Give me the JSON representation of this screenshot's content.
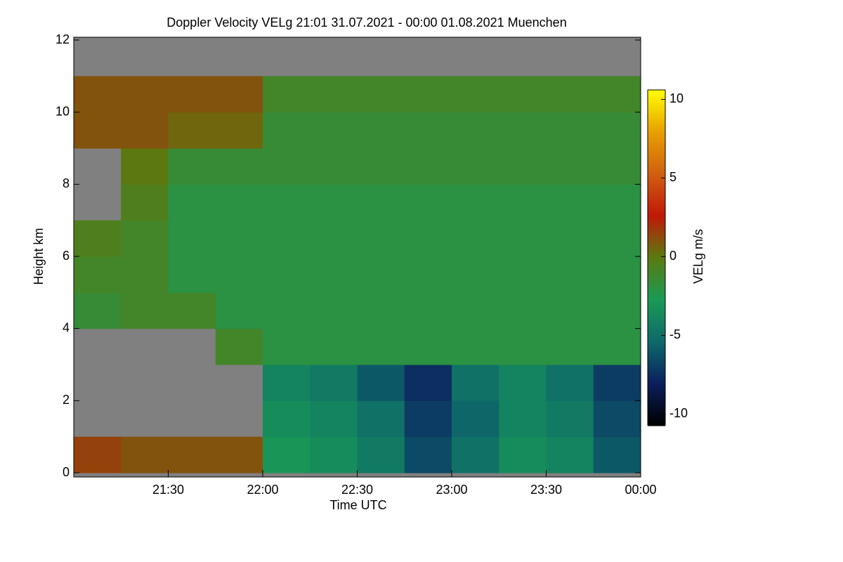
{
  "chart_data": {
    "type": "heatmap",
    "title": "Doppler Velocity VELg   21:01 31.07.2021 - 00:00 01.08.2021 Muenchen",
    "xlabel": "Time UTC",
    "ylabel": "Height km",
    "colorbar_label": "VELg m/s",
    "xlim": [
      21,
      24
    ],
    "xticks": [
      {
        "value": 21.5,
        "label": "21:30"
      },
      {
        "value": 22,
        "label": "22:00"
      },
      {
        "value": 22.5,
        "label": "22:30"
      },
      {
        "value": 23,
        "label": "23:00"
      },
      {
        "value": 23.5,
        "label": "23:30"
      },
      {
        "value": 24,
        "label": "00:00"
      }
    ],
    "ylim": [
      0,
      12
    ],
    "yticks": [
      0,
      2,
      4,
      6,
      8,
      10,
      12
    ],
    "clim": [
      -10.7,
      10.6
    ],
    "cticks": [
      -10,
      -5,
      0,
      5,
      10
    ],
    "colormap": [
      "#000000",
      "#0b1f5e",
      "#0e6a6a",
      "#1a9a55",
      "#5a7a10",
      "#c01808",
      "#d06010",
      "#e8a000",
      "#ffff00"
    ],
    "missing_color": "#808080",
    "xbins": [
      21,
      21.25,
      21.5,
      21.75,
      22,
      22.25,
      22.5,
      22.75,
      23,
      23.25,
      23.5,
      23.75,
      24
    ],
    "ybins": [
      0,
      1,
      2,
      3,
      4,
      5,
      6,
      7,
      8,
      9,
      10,
      11,
      12
    ],
    "z": [
      [
        1.5,
        1,
        1,
        1,
        -3,
        -3.5,
        -4.5,
        -6.5,
        -5,
        -3.5,
        -4,
        -6
      ],
      [
        null,
        null,
        null,
        null,
        -3.5,
        -4,
        -5,
        -7,
        -5.5,
        -4,
        -4.5,
        -6.5
      ],
      [
        null,
        null,
        null,
        null,
        -4,
        -4.5,
        -6,
        -7.5,
        -5,
        -4,
        -5,
        -7
      ],
      [
        null,
        null,
        null,
        -1,
        -2,
        -2,
        -2,
        -2,
        -2,
        -2,
        -2,
        -2
      ],
      [
        -1.5,
        -1,
        -1,
        -2,
        -2,
        -2,
        -2,
        -2,
        -2,
        -2,
        -2,
        -2
      ],
      [
        -1,
        -1,
        -2,
        -2,
        -2,
        -2,
        -2,
        -2,
        -2,
        -2,
        -2,
        -2
      ],
      [
        -0.5,
        -1,
        -2,
        -2,
        -2,
        -2,
        -2,
        -2,
        -2,
        -2,
        -2,
        -2
      ],
      [
        null,
        -0.5,
        -2,
        -2,
        -2,
        -2,
        -2,
        -2,
        -2,
        -2,
        -2,
        -2
      ],
      [
        null,
        0,
        -1.5,
        -1.5,
        -1.5,
        -1.5,
        -1.5,
        -1.5,
        -1.5,
        -1.5,
        -1.5,
        -1.5
      ],
      [
        1,
        1,
        0.5,
        0.5,
        -1.5,
        -1.5,
        -1.5,
        -1.5,
        -1.5,
        -1.5,
        -1.5,
        -1.5
      ],
      [
        1,
        1,
        1,
        1,
        -1,
        -1,
        -1,
        -1,
        -1,
        -1,
        -1,
        -1
      ],
      [
        null,
        null,
        null,
        null,
        null,
        null,
        null,
        null,
        null,
        null,
        null,
        null
      ]
    ]
  }
}
